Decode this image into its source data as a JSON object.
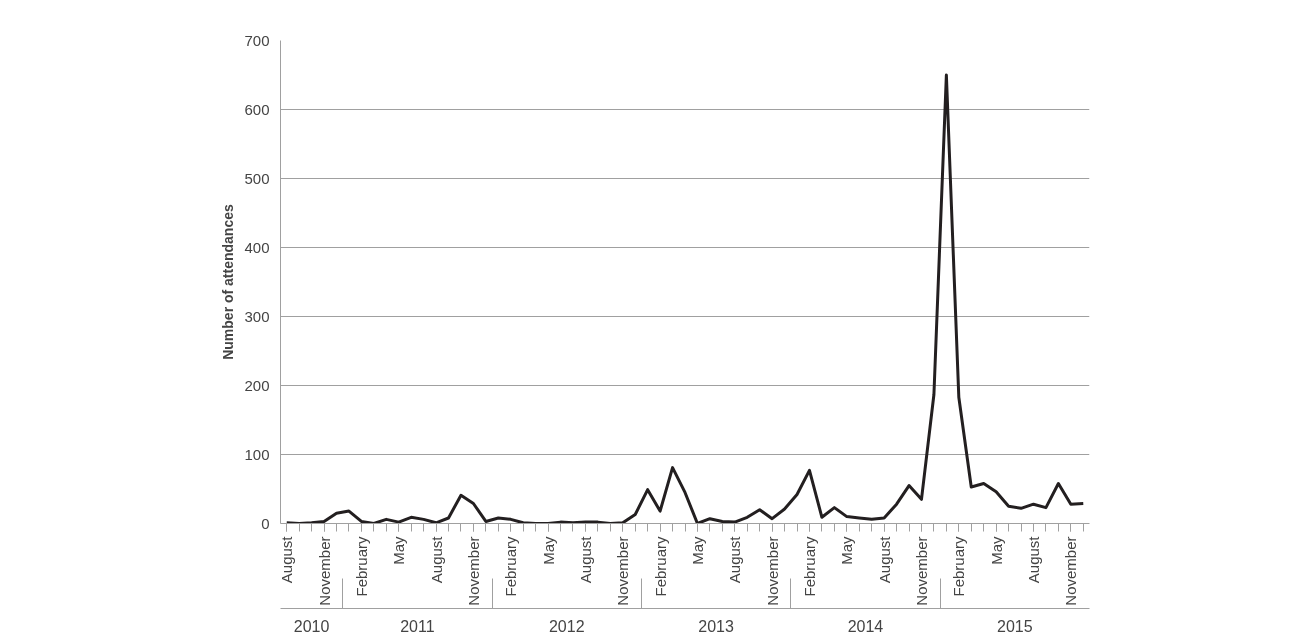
{
  "chart_data": {
    "type": "line",
    "ylabel": "Number of attendances",
    "categories": [
      "August",
      null,
      null,
      "November",
      null,
      null,
      "February",
      null,
      null,
      "May",
      null,
      null,
      "August",
      null,
      null,
      "November",
      null,
      null,
      "February",
      null,
      null,
      "May",
      null,
      null,
      "August",
      null,
      null,
      "November",
      null,
      null,
      "February",
      null,
      null,
      "May",
      null,
      null,
      "August",
      null,
      null,
      "November",
      null,
      null,
      "February",
      null,
      null,
      "May",
      null,
      null,
      "August",
      null,
      null,
      "November",
      null,
      null,
      "February",
      null,
      null,
      "May",
      null,
      null,
      "August",
      null,
      null,
      "November",
      null
    ],
    "series": [
      {
        "color": "#231f20",
        "values": [
          1,
          0,
          1,
          3,
          15,
          18,
          3,
          0,
          6,
          2,
          9,
          6,
          1,
          8,
          41,
          29,
          3,
          8,
          6,
          1,
          0,
          0,
          2,
          1,
          2,
          2,
          0,
          1,
          13,
          49,
          18,
          81,
          45,
          0,
          7,
          3,
          2,
          9,
          20,
          7,
          21,
          42,
          77,
          9,
          23,
          10,
          8,
          6,
          8,
          28,
          55,
          35,
          187,
          650,
          183,
          53,
          58,
          46,
          25,
          22,
          28,
          23,
          58,
          28,
          29
        ]
      }
    ],
    "annotations": [
      "2010",
      "2011",
      "2012",
      "2013",
      "2014",
      "2015"
    ],
    "ylim": [
      0,
      700
    ],
    "yticks": [
      0,
      100,
      200,
      300,
      400,
      500,
      600,
      700
    ],
    "grid": "y",
    "marker": "none",
    "line_style": "solid"
  }
}
